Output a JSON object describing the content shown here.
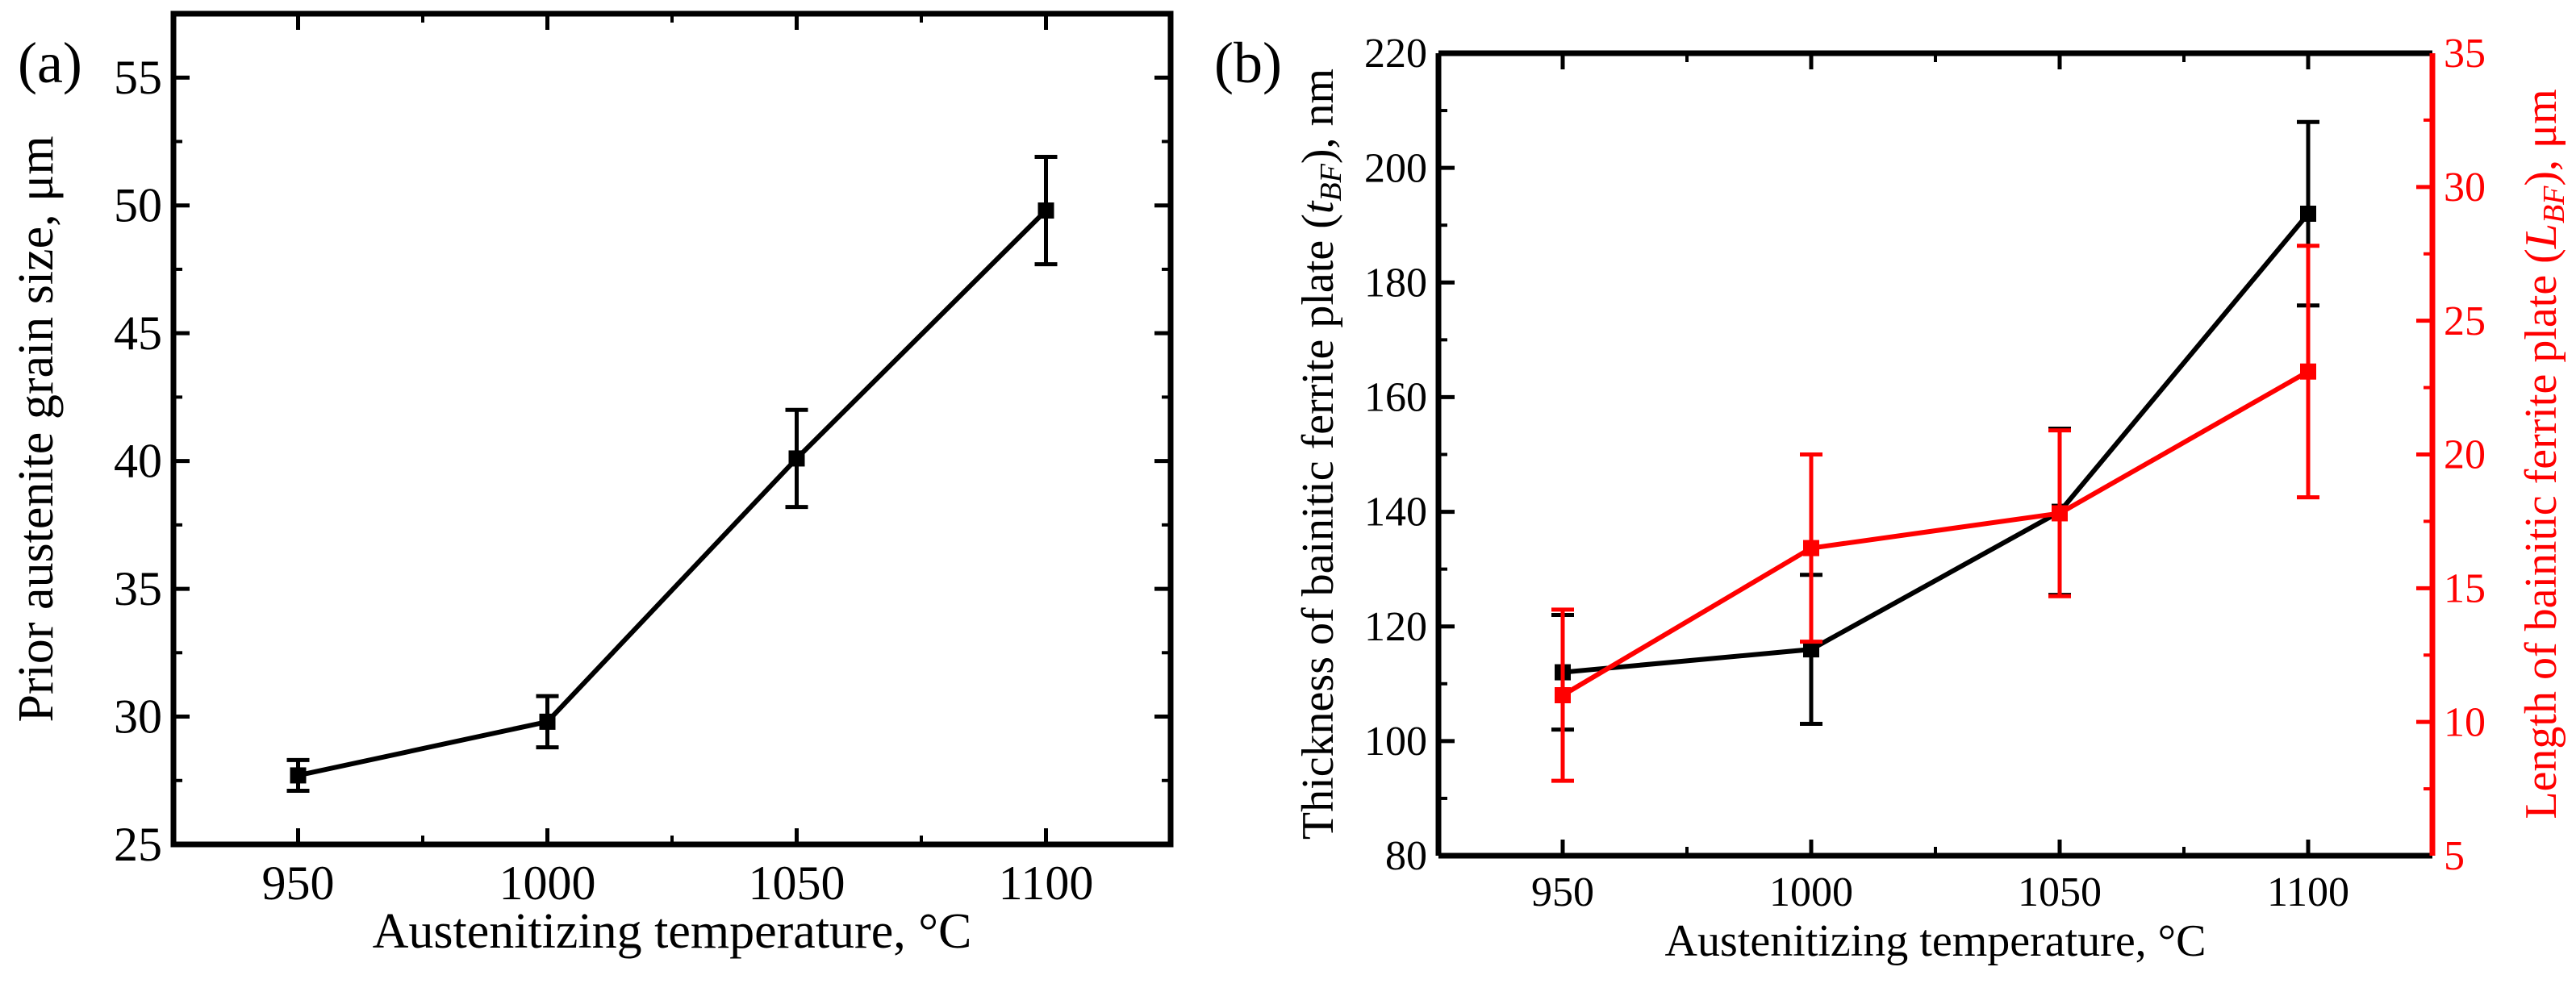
{
  "chart_data": [
    {
      "panel_label": "(a)",
      "type": "line",
      "title": "",
      "xlabel": "Austenitizing temperature, °C",
      "ylabel": "Prior austenite grain size, μm",
      "xlim": [
        925,
        1125
      ],
      "ylim": [
        25,
        57.5
      ],
      "xticks": [
        950,
        1000,
        1050,
        1100
      ],
      "yticks": [
        25,
        30,
        35,
        40,
        45,
        50,
        55
      ],
      "series": [
        {
          "name": "Prior austenite grain size",
          "color": "#000000",
          "axis": "left",
          "x": [
            950,
            1000,
            1050,
            1100
          ],
          "values": [
            27.7,
            29.8,
            40.1,
            49.8
          ],
          "errors": [
            0.6,
            1.0,
            1.9,
            2.1
          ]
        }
      ]
    },
    {
      "panel_label": "(b)",
      "type": "line",
      "title": "",
      "xlabel": "Austenitizing temperature, °C",
      "ylabel": "Thickness of bainitic ferrite plate (tBF), nm",
      "ylabel_parts": [
        "Thickness of bainitic ferrite plate (",
        "t",
        "BF",
        "), nm"
      ],
      "y2label": "Length of bainitic ferrite plate (LBF), μm",
      "y2label_parts": [
        "Length of bainitic ferrite plate (",
        "L",
        "BF",
        "), μm"
      ],
      "xlim": [
        925,
        1125
      ],
      "ylim": [
        80,
        220
      ],
      "y2lim": [
        5,
        35
      ],
      "xticks": [
        950,
        1000,
        1050,
        1100
      ],
      "yticks": [
        80,
        100,
        120,
        140,
        160,
        180,
        200,
        220
      ],
      "y2ticks": [
        5,
        10,
        15,
        20,
        25,
        30,
        35
      ],
      "series": [
        {
          "name": "Thickness of bainitic ferrite plate (tBF)",
          "color": "#000000",
          "axis": "left",
          "x": [
            950,
            1000,
            1050,
            1100
          ],
          "values": [
            112,
            116,
            140,
            192
          ],
          "errors": [
            10,
            13,
            14.5,
            16
          ]
        },
        {
          "name": "Length of bainitic ferrite plate (LBF)",
          "color": "#ff0000",
          "axis": "right",
          "x": [
            950,
            1000,
            1050,
            1100
          ],
          "values": [
            11,
            16.5,
            17.8,
            23.1
          ],
          "errors": [
            3.2,
            3.5,
            3.1,
            4.7
          ]
        }
      ]
    }
  ]
}
